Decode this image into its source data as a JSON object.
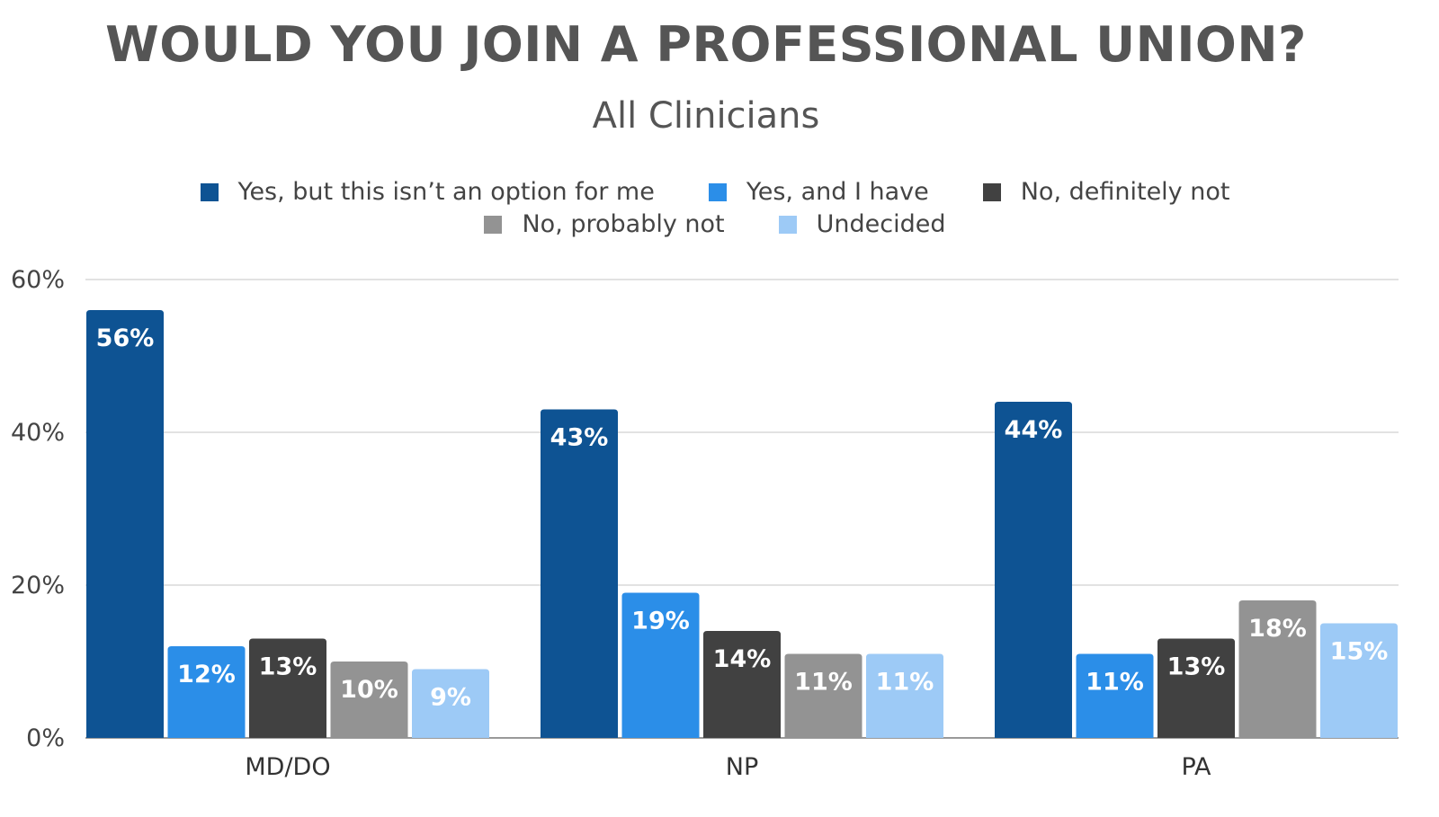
{
  "chart_data": {
    "type": "bar",
    "title": "WOULD YOU JOIN A PROFESSIONAL UNION?",
    "subtitle": "All Clinicians",
    "categories": [
      "MD/DO",
      "NP",
      "PA"
    ],
    "series": [
      {
        "name": "Yes, but this isn’t an option for me",
        "color": "#0e5393",
        "values": [
          56,
          43,
          44
        ],
        "labels": [
          "56%",
          "43%",
          "44%"
        ]
      },
      {
        "name": "Yes, and I have",
        "color": "#2b8ee8",
        "values": [
          12,
          19,
          11
        ],
        "labels": [
          "12%",
          "19%",
          "11%"
        ]
      },
      {
        "name": "No, definitely not",
        "color": "#414141",
        "values": [
          13,
          14,
          13
        ],
        "labels": [
          "13%",
          "14%",
          "13%"
        ]
      },
      {
        "name": "No, probably not",
        "color": "#939393",
        "values": [
          10,
          11,
          18
        ],
        "labels": [
          "10%",
          "11%",
          "18%"
        ]
      },
      {
        "name": "Undecided",
        "color": "#9dcaf6",
        "values": [
          9,
          11,
          15
        ],
        "labels": [
          "9%",
          "11%",
          "15%"
        ]
      }
    ],
    "ylim": [
      0,
      60
    ],
    "yticks": [
      0,
      20,
      40,
      60
    ],
    "ytick_labels": [
      "0%",
      "20%",
      "40%",
      "60%"
    ],
    "xlabel": "",
    "ylabel": "",
    "grid": true,
    "legend_position": "top-center"
  }
}
